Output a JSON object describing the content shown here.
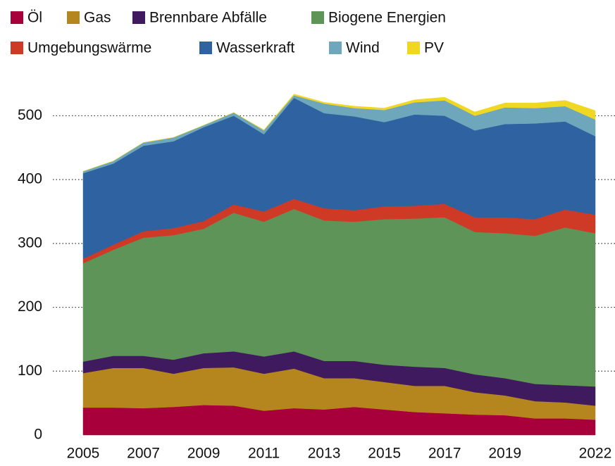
{
  "chart_data": {
    "type": "stacked_area",
    "x": [
      2005,
      2006,
      2007,
      2008,
      2009,
      2010,
      2011,
      2012,
      2013,
      2014,
      2015,
      2016,
      2017,
      2018,
      2019,
      2020,
      2021,
      2022
    ],
    "xlim": [
      2005,
      2022
    ],
    "xticks": [
      2005,
      2007,
      2009,
      2011,
      2013,
      2015,
      2017,
      2019,
      2022
    ],
    "ylim": [
      0,
      560
    ],
    "yticks": [
      0,
      100,
      200,
      300,
      400,
      500
    ],
    "grid": true,
    "legend": "top",
    "series": [
      {
        "name": "Öl",
        "color": "#a8003b",
        "values": [
          43,
          43,
          42,
          44,
          47,
          46,
          38,
          42,
          40,
          44,
          40,
          36,
          34,
          32,
          31,
          26,
          26,
          24
        ]
      },
      {
        "name": "Gas",
        "color": "#b5861e",
        "values": [
          54,
          62,
          63,
          52,
          58,
          60,
          58,
          62,
          49,
          45,
          43,
          41,
          43,
          35,
          31,
          27,
          25,
          22
        ]
      },
      {
        "name": "Brennbare Abfälle",
        "color": "#3f1a5e",
        "values": [
          18,
          19,
          19,
          22,
          23,
          25,
          27,
          27,
          27,
          27,
          27,
          30,
          28,
          28,
          27,
          27,
          27,
          30
        ]
      },
      {
        "name": "Biogene Energien",
        "color": "#5e9457",
        "values": [
          154,
          166,
          185,
          195,
          195,
          217,
          211,
          223,
          220,
          218,
          228,
          232,
          236,
          223,
          227,
          232,
          247,
          240
        ]
      },
      {
        "name": "Umgebungswärme",
        "color": "#cf3a27",
        "values": [
          7,
          8,
          10,
          11,
          12,
          13,
          16,
          16,
          19,
          18,
          20,
          20,
          21,
          23,
          25,
          26,
          28,
          29
        ]
      },
      {
        "name": "Wasserkraft",
        "color": "#2f62a0",
        "values": [
          134,
          127,
          134,
          136,
          147,
          139,
          121,
          158,
          149,
          147,
          132,
          143,
          138,
          136,
          146,
          150,
          138,
          123
        ]
      },
      {
        "name": "Wind",
        "color": "#6ea6bb",
        "values": [
          3,
          4,
          5,
          6,
          3,
          5,
          6,
          4,
          15,
          13,
          19,
          19,
          24,
          23,
          26,
          24,
          24,
          26
        ]
      },
      {
        "name": "PV",
        "color": "#f0d722",
        "values": [
          0,
          0,
          0,
          0,
          0,
          0,
          1,
          2,
          2,
          3,
          3,
          4,
          5,
          6,
          7,
          8,
          9,
          14
        ]
      }
    ]
  }
}
